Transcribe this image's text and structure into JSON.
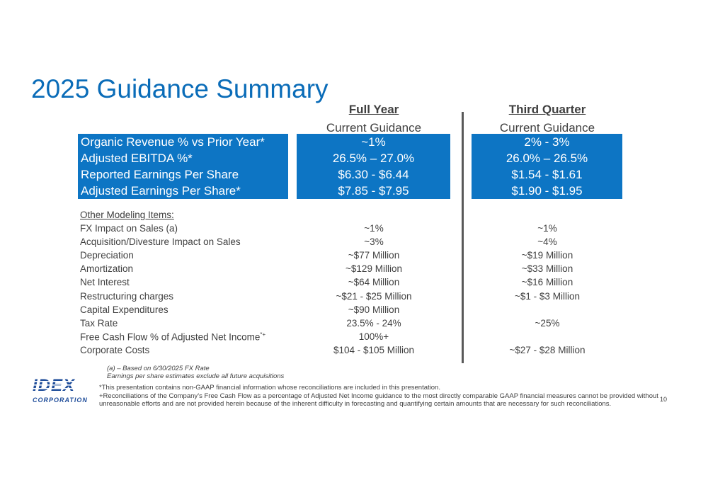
{
  "title": "2025 Guidance Summary",
  "columns": {
    "full_year": {
      "title": "Full Year",
      "subtitle": "Current Guidance"
    },
    "third_quarter": {
      "title": "Third Quarter",
      "subtitle": "Current Guidance"
    }
  },
  "highlight_rows": [
    {
      "label": "Organic Revenue % vs Prior Year*",
      "full_year": "~1%",
      "third_quarter": "2% - 3%"
    },
    {
      "label": "Adjusted EBITDA %*",
      "full_year": "26.5% – 27.0%",
      "third_quarter": "26.0% – 26.5%"
    },
    {
      "label": "Reported Earnings Per Share",
      "full_year": "$6.30 - $6.44",
      "third_quarter": "$1.54 - $1.61"
    },
    {
      "label": "Adjusted Earnings Per Share*",
      "full_year": "$7.85 - $7.95",
      "third_quarter": "$1.90 - $1.95"
    }
  ],
  "other_items_title": "Other Modeling Items:",
  "other_items": [
    {
      "label": "FX Impact on Sales (a)",
      "full_year": "~1%",
      "third_quarter": "~1%"
    },
    {
      "label": "Acquisition/Divesture Impact on Sales",
      "full_year": "~3%",
      "third_quarter": "~4%"
    },
    {
      "label": "Depreciation",
      "full_year": "~$77 Million",
      "third_quarter": "~$19 Million"
    },
    {
      "label": "Amortization",
      "full_year": "~$129 Million",
      "third_quarter": "~$33 Million"
    },
    {
      "label": "Net Interest",
      "full_year": "~$64 Million",
      "third_quarter": "~$16 Million"
    },
    {
      "label": "Restructuring charges",
      "full_year": "~$21 - $25 Million",
      "third_quarter": "~$1 - $3 Million"
    },
    {
      "label": "Capital Expenditures",
      "full_year": "~$90 Million",
      "third_quarter": ""
    },
    {
      "label": "Tax Rate",
      "full_year": "23.5% - 24%",
      "third_quarter": "~25%"
    },
    {
      "label": "Free Cash Flow % of Adjusted Net Income",
      "label_sup": "*+",
      "full_year": "100%+",
      "third_quarter": ""
    },
    {
      "label": "Corporate Costs",
      "full_year": "$104 - $105 Million",
      "third_quarter": "~$27 - $28 Million"
    }
  ],
  "notes": [
    "(a) – Based on 6/30/2025 FX Rate",
    "Earnings per share estimates exclude all future acquisitions"
  ],
  "footer": [
    "*This presentation contains non-GAAP financial information whose reconciliations are included in this presentation.",
    "+Reconciliations of the Company’s Free Cash Flow as a percentage of Adjusted Net Income guidance to the most directly comparable GAAP financial measures cannot be provided without unreasonable efforts and are not provided herein because of the inherent difficulty in forecasting and quantifying certain amounts that are necessary for such reconciliations."
  ],
  "logo": {
    "mark": "IDEX",
    "word": "CORPORATION"
  },
  "page_number": "10",
  "colors": {
    "title": "#0a6cb8",
    "band": "#0d75c4",
    "logo": "#1f4d9a"
  }
}
